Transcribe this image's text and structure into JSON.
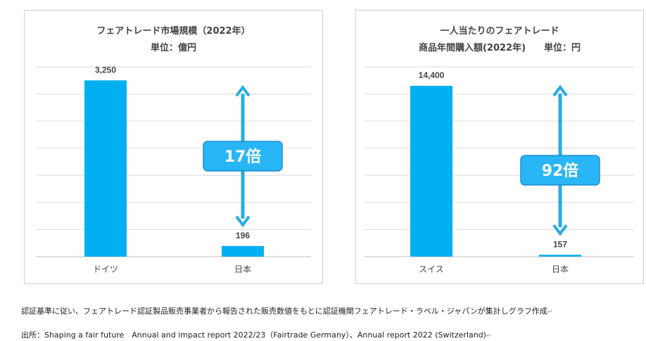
{
  "chart_data": [
    {
      "type": "bar",
      "title": "フェアトレード市場規模（2022年）",
      "subtitle": "単位：億円",
      "categories": [
        "ドイツ",
        "日本"
      ],
      "values": [
        3250,
        196
      ],
      "value_labels": [
        "3,250",
        "196"
      ],
      "ylim": [
        0,
        3500
      ],
      "grid": true,
      "bar_color": "#00b0f0",
      "annotation": "17倍"
    },
    {
      "type": "bar",
      "title": "一人当たりのフェアトレード",
      "subtitle": "商品年間購入額(2022年)　　単位：円",
      "categories": [
        "スイス",
        "日本"
      ],
      "values": [
        14400,
        157
      ],
      "value_labels": [
        "14,400",
        "157"
      ],
      "ylim": [
        0,
        16000
      ],
      "grid": true,
      "bar_color": "#00b0f0",
      "annotation": "92倍"
    }
  ],
  "notes": {
    "method": "認証基準に従い、フェアトレード認証製品販売事業者から報告された販売数値をもとに認証機関フェアトレード・ラベル・ジャパンが集計しグラフ作成",
    "source": "出所：Shaping a fair future　Annual and impact report 2022/23（Fairtrade Germany）、Annual report 2022 (Switzerland)",
    "return_mark": "↵"
  },
  "colors": {
    "bar": "#00b0f0",
    "arrow": "#29abe2",
    "callout_fill": "#29b6f6",
    "callout_border": "#1a8fd0",
    "grid": "#d9d9d9"
  }
}
